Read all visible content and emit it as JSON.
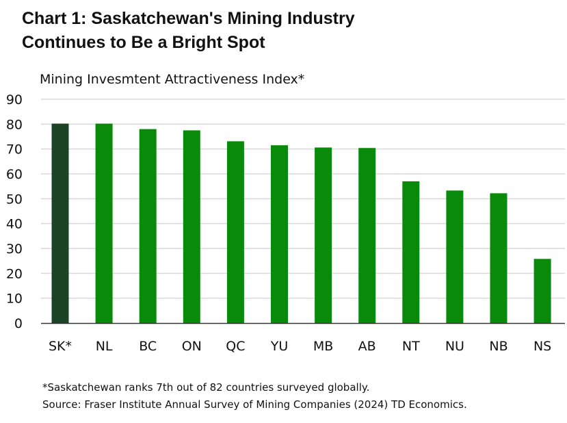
{
  "title_line1": "Chart 1: Saskatchewan's Mining Industry",
  "title_line2": "Continues to Be a Bright Spot",
  "footnote": "*Saskatchewan ranks 7th out of 82 countries surveyed globally.",
  "source": "Source: Fraser Institute Annual Survey of Mining Companies (2024) TD Economics.",
  "colors": {
    "highlight": "#1b4426",
    "bar": "#0a8a0a",
    "grid": "#d9d9d9",
    "axis": "#333333"
  },
  "chart_data": {
    "type": "bar",
    "title": "",
    "ylabel": "Mining Invesmtent Attractiveness Index*",
    "xlabel": "",
    "categories": [
      "SK*",
      "NL",
      "BC",
      "ON",
      "QC",
      "YU",
      "MB",
      "AB",
      "NT",
      "NU",
      "NB",
      "NS"
    ],
    "values": [
      80.2,
      80.2,
      78.0,
      77.5,
      73.1,
      71.5,
      70.6,
      70.4,
      57.0,
      53.3,
      52.2,
      25.8
    ],
    "highlight_category": "SK*",
    "ylim": [
      0,
      90
    ],
    "yticks": [
      0,
      10,
      20,
      30,
      40,
      50,
      60,
      70,
      80,
      90
    ],
    "grid": true,
    "legend": "none"
  }
}
